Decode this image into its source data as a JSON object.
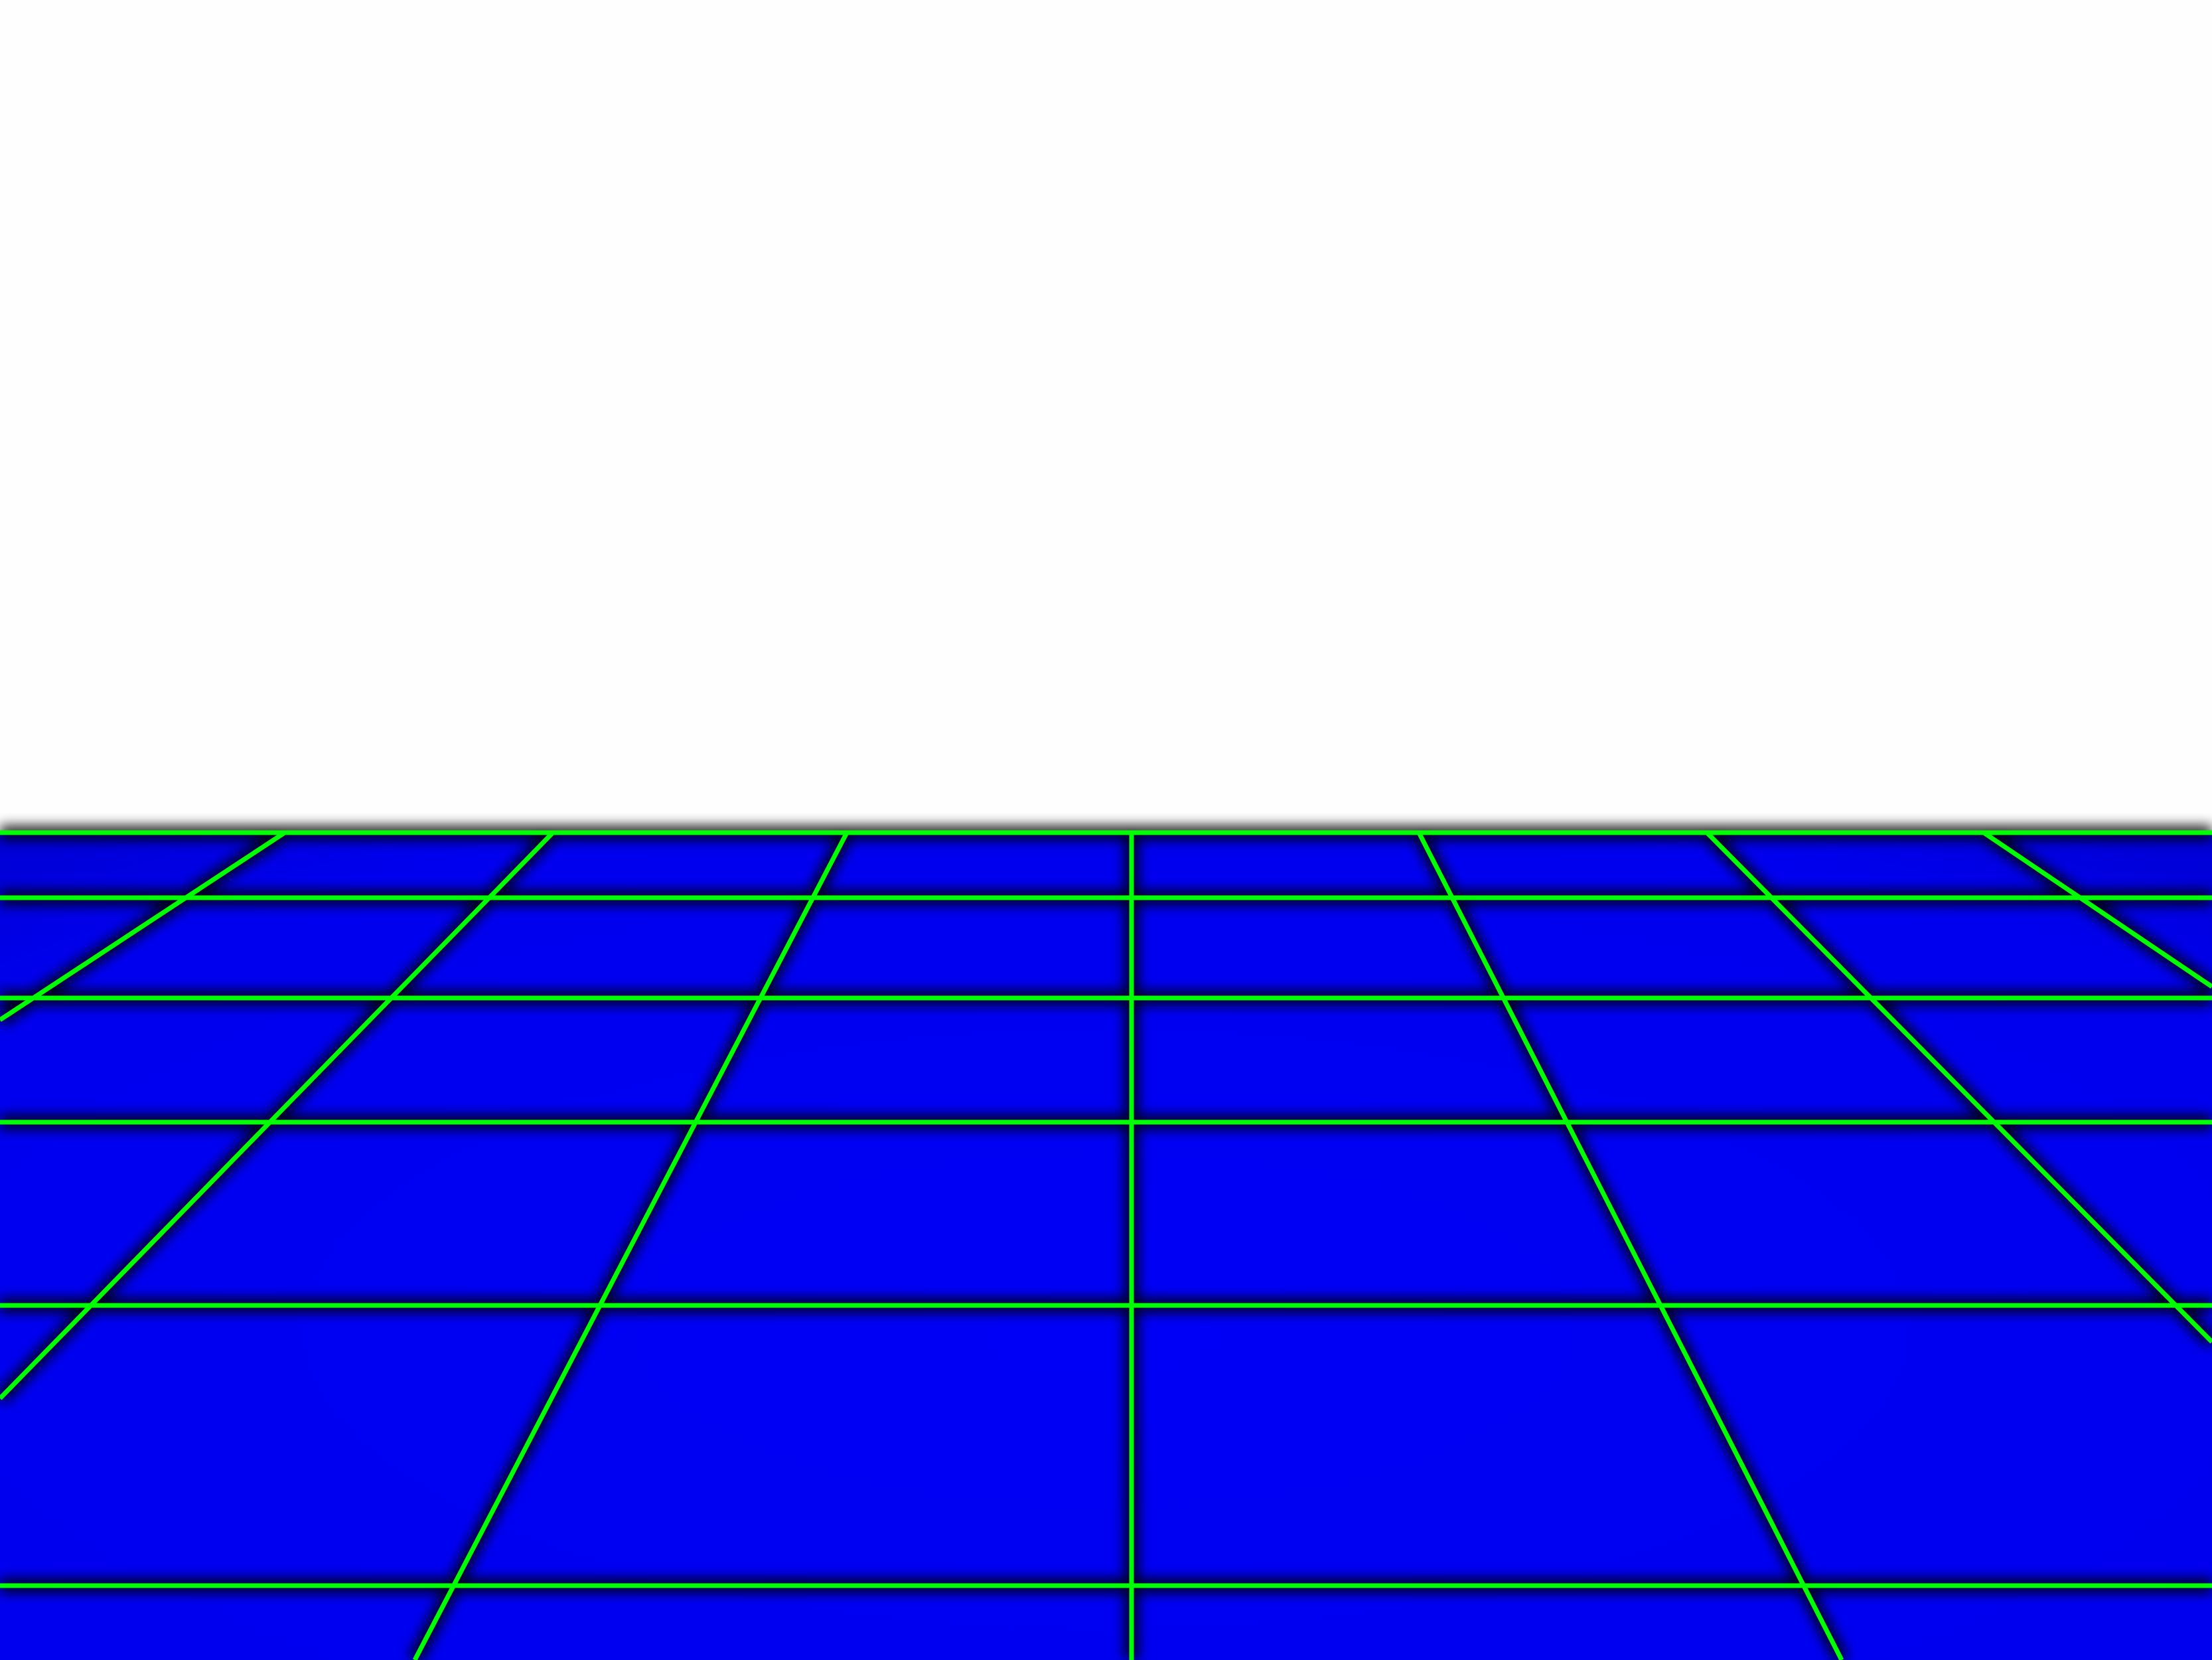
{
  "scene": {
    "background_color": "#fefefe",
    "floor_color": "#0000f2",
    "grid_line_color": "#00ff00",
    "grid_shadow_color": "#000000"
  }
}
